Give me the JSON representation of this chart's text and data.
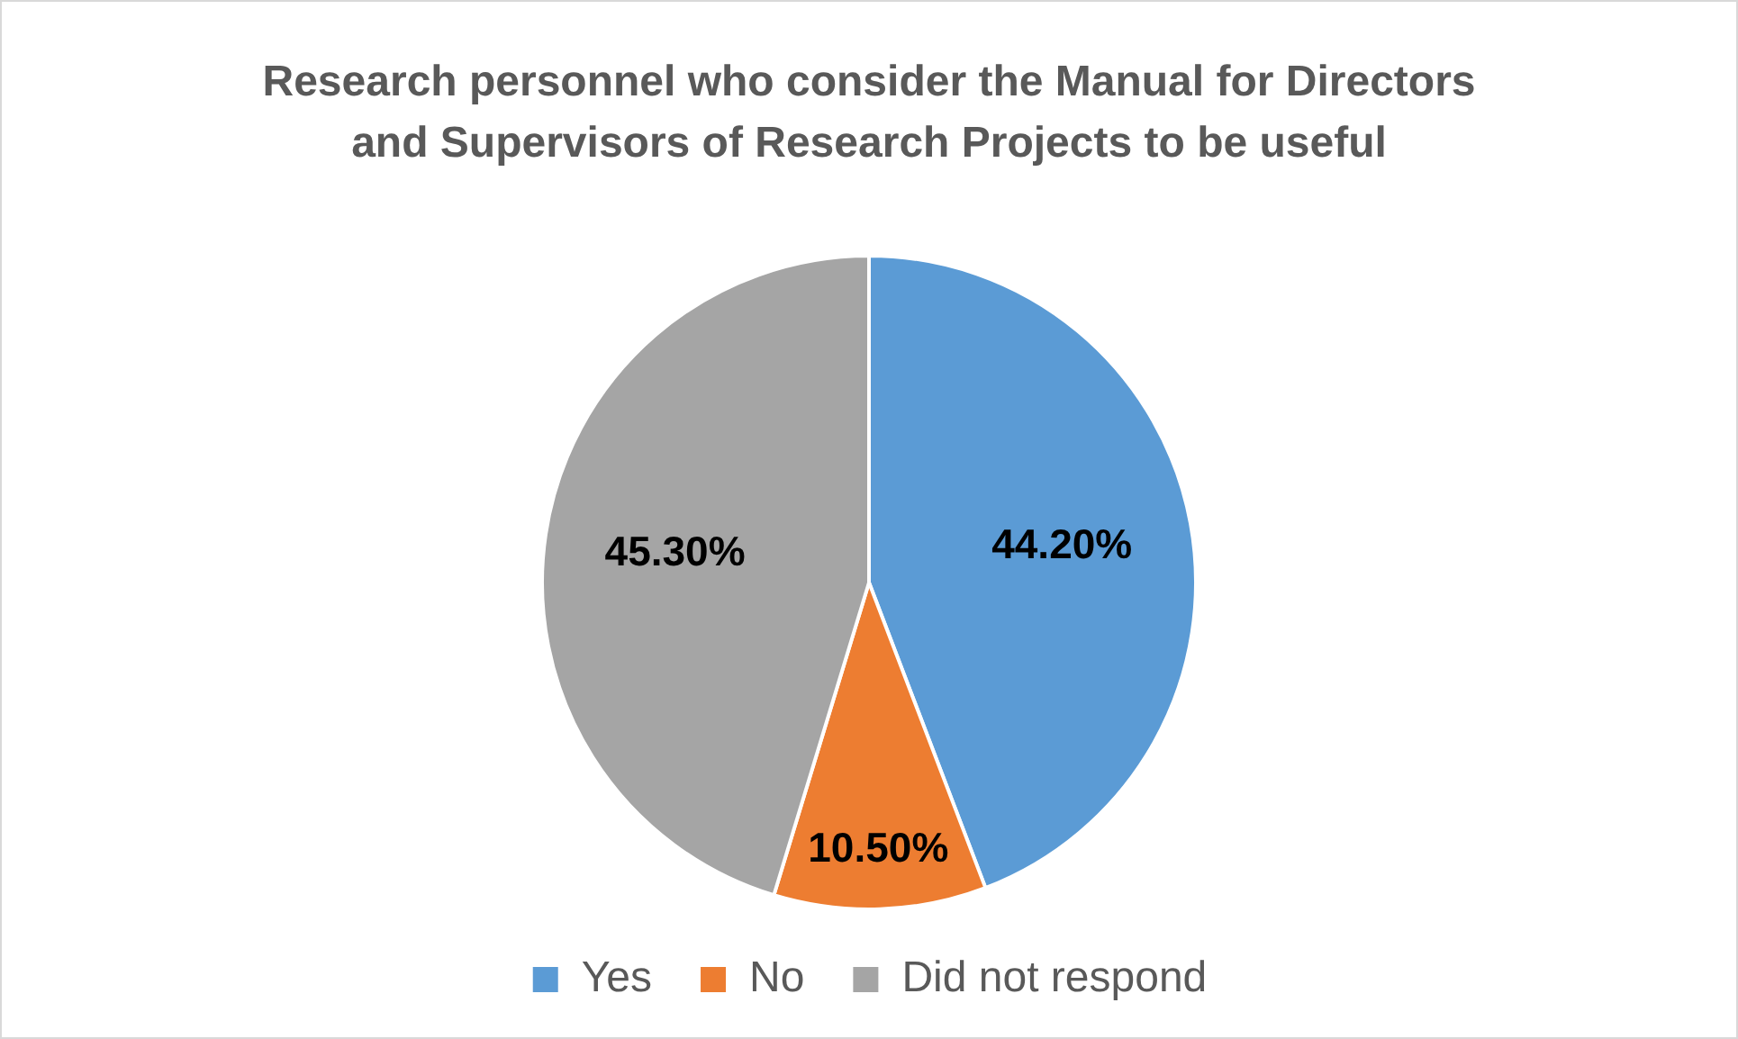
{
  "chart_data": {
    "type": "pie",
    "title": "Research personnel who consider the Manual for Directors and Supervisors of Research Projects to be useful",
    "categories": [
      "Yes",
      "No",
      "Did not respond"
    ],
    "values": [
      44.2,
      10.5,
      45.3
    ],
    "colors": [
      "#5b9bd5",
      "#ed7d31",
      "#a5a5a5"
    ],
    "value_labels": [
      "44.20%",
      "10.50%",
      "45.30%"
    ],
    "legend": "bottom"
  }
}
